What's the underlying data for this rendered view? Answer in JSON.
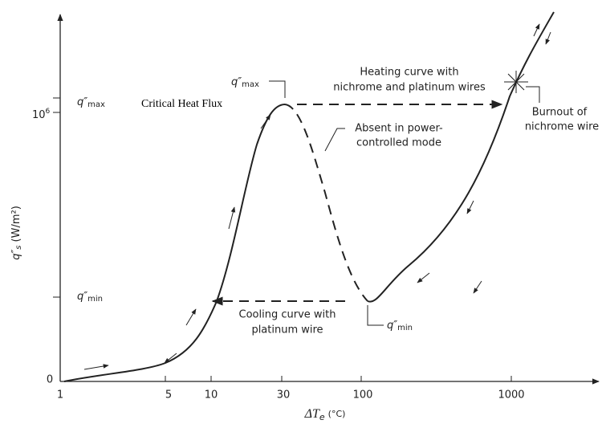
{
  "x_axis": {
    "label": {
      "symbol": "ΔT",
      "sub": "e",
      "unit": "(°C)"
    },
    "ticks": [
      "1",
      "5",
      "10",
      "30",
      "100",
      "1000"
    ]
  },
  "y_axis": {
    "label": {
      "symbol": "q″",
      "sub": "s",
      "unit": "(W/m²)"
    },
    "ticks": {
      "zero": "0",
      "q_min": {
        "symbol": "q″",
        "sub": "min"
      },
      "million": {
        "base": "10",
        "exp": "6"
      },
      "q_max": {
        "symbol": "q″",
        "sub": "max"
      }
    }
  },
  "annotations": {
    "peak_label": {
      "symbol": "q″",
      "sub": "max"
    },
    "min_label": {
      "symbol": "q″",
      "sub": "min"
    },
    "critical_heat_flux": "Critical Heat Flux",
    "heating_curve": [
      "Heating curve with",
      "nichrome and platinum wires"
    ],
    "absent_mode": [
      "Absent in power-",
      "controlled mode"
    ],
    "cooling_curve": [
      "Cooling curve with",
      "platinum wire"
    ],
    "burnout": [
      "Burnout of",
      "nichrome wire"
    ]
  }
}
